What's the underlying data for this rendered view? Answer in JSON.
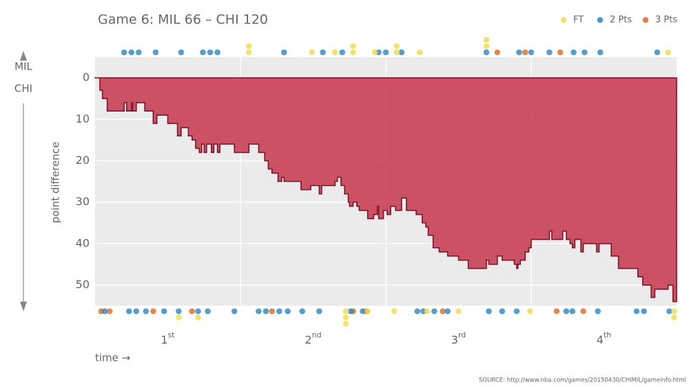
{
  "chart_data": {
    "type": "step-area",
    "title": "Game 6: MIL 66  –  CHI 120",
    "y_label": "point difference",
    "x_label": "time →",
    "source": "SOURCE: http://www.nba.com/games/20150430/CHIMIL/gameinfo.html",
    "top_team": "MIL",
    "bottom_team": "CHI",
    "xlim": [
      0,
      48
    ],
    "ylim": [
      -5,
      55
    ],
    "y_reversed": true,
    "yticks": [
      0,
      10,
      20,
      30,
      40,
      50
    ],
    "xticks": [
      {
        "value": 6,
        "label": "1",
        "suffix": "st"
      },
      {
        "value": 18,
        "label": "2",
        "suffix": "nd"
      },
      {
        "value": 30,
        "label": "3",
        "suffix": "rd"
      },
      {
        "value": 42,
        "label": "4",
        "suffix": "th"
      }
    ],
    "xgrid": [
      12,
      24,
      36
    ],
    "grid": true,
    "area_color": "#c7364d",
    "line_color": "#7a1426",
    "x": [
      0,
      0.4,
      0.6,
      1.0,
      2.4,
      2.6,
      3.0,
      3.1,
      3.4,
      4.1,
      4.8,
      5.1,
      6.0,
      6.8,
      7.1,
      7.7,
      8.0,
      8.3,
      8.6,
      8.8,
      9.0,
      9.2,
      9.6,
      9.8,
      10.1,
      10.3,
      11.5,
      12.7,
      13.5,
      14.0,
      14.3,
      14.6,
      15.1,
      15.4,
      15.6,
      17.0,
      17.8,
      18.5,
      18.7,
      19.8,
      20.0,
      20.3,
      20.6,
      20.9,
      21.0,
      21.3,
      21.6,
      21.8,
      22.5,
      23.0,
      23.3,
      23.4,
      23.8,
      24.1,
      24.4,
      24.8,
      25.3,
      25.7,
      26.5,
      27.0,
      27.3,
      27.5,
      27.9,
      28.4,
      29.1,
      30.0,
      30.8,
      32.3,
      32.5,
      33.2,
      33.6,
      34.6,
      34.8,
      34.9,
      35.1,
      35.5,
      35.8,
      36.0,
      37.5,
      37.7,
      38.6,
      38.9,
      39.2,
      39.4,
      39.6,
      40.1,
      40.3,
      41.4,
      41.6,
      42.6,
      43.2,
      44.8,
      45.2,
      45.9,
      46.2,
      47.3,
      47.7,
      48
    ],
    "values": [
      0,
      3,
      5,
      8,
      6,
      8,
      6,
      8,
      6,
      8,
      11,
      9,
      11,
      14,
      12,
      14,
      15,
      17,
      18,
      16,
      18,
      16,
      18,
      16,
      18,
      16,
      18,
      16,
      18,
      20,
      22,
      23,
      25,
      24,
      25,
      27,
      26,
      28,
      26,
      25,
      24,
      26,
      28,
      30,
      31,
      30,
      31,
      32,
      34,
      33,
      31,
      34,
      32,
      33,
      31,
      32,
      29,
      32,
      33,
      35,
      36,
      38,
      41,
      42,
      43,
      44,
      46,
      44,
      45,
      43,
      44,
      45,
      46,
      45,
      44,
      42,
      41,
      39,
      37,
      39,
      37,
      39,
      40,
      41,
      39,
      42,
      40,
      42,
      40,
      43,
      46,
      48,
      50,
      53,
      51,
      50,
      54,
      54
    ],
    "legend": "top-right",
    "series": [
      {
        "name": "FT",
        "color": "#eedd4a",
        "top_x": [
          12.7,
          12.7,
          17.9,
          19.8,
          21.3,
          21.3,
          23.1,
          24.9,
          24.9,
          26.8,
          32.3,
          32.3,
          47.3
        ],
        "bottom_x": [
          6.9,
          8.5,
          20.7,
          20.7,
          20.7,
          22.5,
          24.7,
          27.4,
          30.0,
          35.9,
          47.8,
          47.8
        ]
      },
      {
        "name": "2 Pts",
        "color": "#2b86c0",
        "top_x": [
          2.4,
          3.0,
          3.6,
          5.0,
          7.1,
          8.9,
          9.5,
          10.1,
          15.6,
          18.8,
          20.4,
          23.4,
          24.0,
          25.3,
          32.3,
          35.0,
          36.0,
          37.5,
          39.5,
          40.4,
          41.7,
          46.4
        ],
        "bottom_x": [
          0.8,
          2.8,
          3.4,
          4.2,
          5.7,
          6.9,
          8.5,
          9.3,
          11.5,
          13.5,
          14.1,
          15.2,
          15.9,
          17.1,
          18.5,
          21.1,
          22.1,
          26.6,
          27.1,
          28.0,
          29.1,
          32.5,
          33.6,
          34.8,
          38.9,
          39.4,
          41.5,
          44.7,
          45.3,
          47.4
        ]
      },
      {
        "name": "3 Pts",
        "color": "#dd6a22",
        "top_x": [
          33.2,
          35.5,
          38.4
        ],
        "bottom_x": [
          0.5,
          1.2,
          4.8,
          8.0,
          14.6,
          21.3,
          22.4,
          28.7,
          38.1,
          40.3
        ]
      }
    ]
  }
}
